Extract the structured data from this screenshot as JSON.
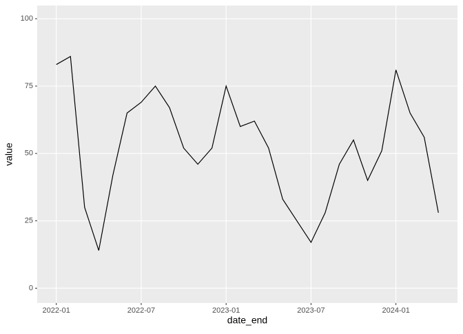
{
  "chart_data": {
    "type": "line",
    "x_label": "date_end",
    "y_label": "value",
    "x": [
      "2022-01",
      "2022-02",
      "2022-03",
      "2022-04",
      "2022-05",
      "2022-06",
      "2022-07",
      "2022-08",
      "2022-09",
      "2022-10",
      "2022-11",
      "2022-12",
      "2023-01",
      "2023-02",
      "2023-03",
      "2023-04",
      "2023-05",
      "2023-06",
      "2023-07",
      "2023-08",
      "2023-09",
      "2023-10",
      "2023-11",
      "2023-12",
      "2024-01",
      "2024-02",
      "2024-03",
      "2024-04"
    ],
    "series": [
      {
        "name": "value",
        "color": "#000000",
        "values": [
          83,
          86,
          30,
          14,
          42,
          65,
          69,
          75,
          67,
          52,
          46,
          52,
          75,
          60,
          62,
          52,
          33,
          25,
          17,
          28,
          46,
          55,
          40,
          51,
          81,
          65,
          56,
          28
        ]
      }
    ],
    "xticks": [
      "2022-01",
      "2022-07",
      "2023-01",
      "2023-07",
      "2024-01"
    ],
    "ylim": [
      -5.5,
      104.9
    ],
    "yticks": [
      0,
      25,
      50,
      75,
      100
    ],
    "grid": true
  }
}
